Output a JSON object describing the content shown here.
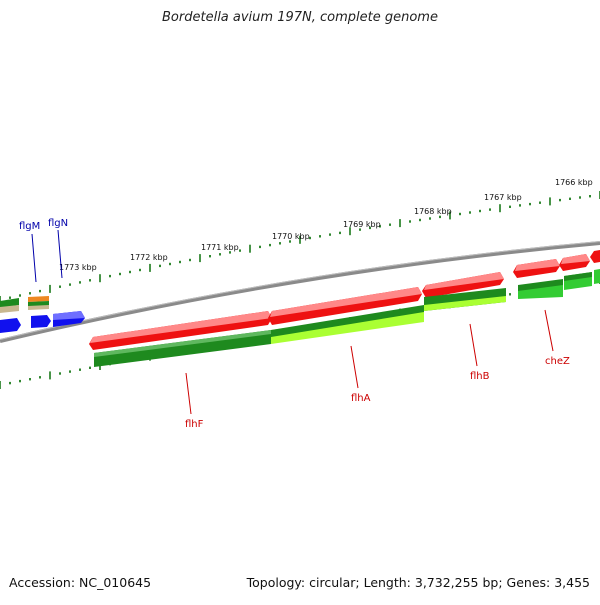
{
  "title": "Bordetella avium 197N, complete genome",
  "footer": {
    "accession": "Accession: NC_010645",
    "summary": "Topology: circular; Length: 3,732,255 bp; Genes: 3,455"
  },
  "ruler": {
    "labels": [
      "1773 kbp",
      "1772 kbp",
      "1771 kbp",
      "1770 kbp",
      "1769 kbp",
      "1768 kbp",
      "1767 kbp",
      "1766 kbp"
    ]
  },
  "genes": {
    "red_labels": [
      "flhF",
      "flhA",
      "flhB",
      "cheZ"
    ],
    "blue_labels": [
      "flgM",
      "flgN"
    ]
  },
  "colors": {
    "forward_gene": "#ee1111",
    "reverse_gene_dark": "#1e8a1e",
    "reverse_gene_light": "#33cc33",
    "rna_gene": "#aaff33",
    "blue_gene": "#1111ee",
    "backbone": "#888888",
    "ticks": "#1a7a1a",
    "red_label": "#cc0000",
    "blue_label": "#0000aa"
  }
}
